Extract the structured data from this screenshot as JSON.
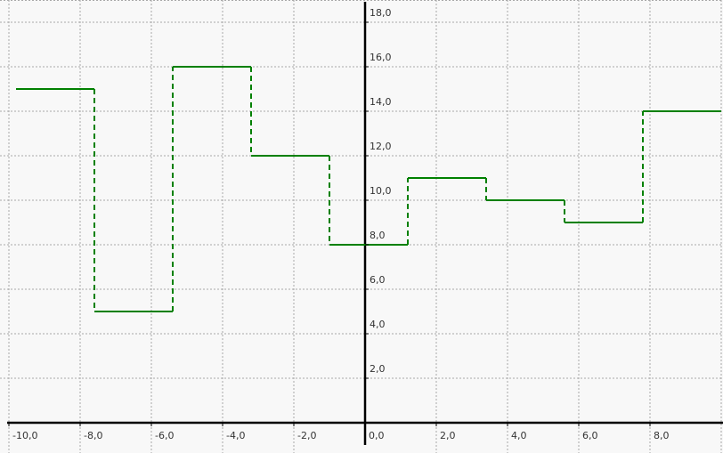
{
  "chart_data": {
    "type": "line",
    "step": true,
    "title": "",
    "xlabel": "",
    "ylabel": "",
    "xlim": [
      -10.2,
      10.0
    ],
    "ylim": [
      0,
      19.4
    ],
    "grid": true,
    "x_ticks": [
      -10,
      -8,
      -6,
      -4,
      -2,
      0,
      2,
      4,
      6,
      8
    ],
    "x_tick_labels": [
      "-10,0",
      "-8,0",
      "-6,0",
      "-4,0",
      "-2,0",
      "0,0",
      "2,0",
      "4,0",
      "6,0",
      "8,0"
    ],
    "y_ticks": [
      2,
      4,
      6,
      8,
      10,
      12,
      14,
      16,
      18
    ],
    "y_tick_labels": [
      "2,0",
      "4,0",
      "6,0",
      "8,0",
      "10,0",
      "12,0",
      "14,0",
      "16,0",
      "18,0"
    ],
    "series": [
      {
        "color": "#008000",
        "segments": [
          {
            "x0": -9.8,
            "x1": -7.6,
            "y": 15.0
          },
          {
            "x0": -7.6,
            "x1": -5.4,
            "y": 5.0
          },
          {
            "x0": -5.4,
            "x1": -3.2,
            "y": 16.0
          },
          {
            "x0": -3.2,
            "x1": -1.0,
            "y": 12.0
          },
          {
            "x0": -1.0,
            "x1": 1.2,
            "y": 8.0
          },
          {
            "x0": 1.2,
            "x1": 3.4,
            "y": 11.0
          },
          {
            "x0": 3.4,
            "x1": 5.6,
            "y": 10.0
          },
          {
            "x0": 5.6,
            "x1": 7.8,
            "y": 9.0
          },
          {
            "x0": 7.8,
            "x1": 10.0,
            "y": 14.0
          }
        ]
      }
    ]
  }
}
